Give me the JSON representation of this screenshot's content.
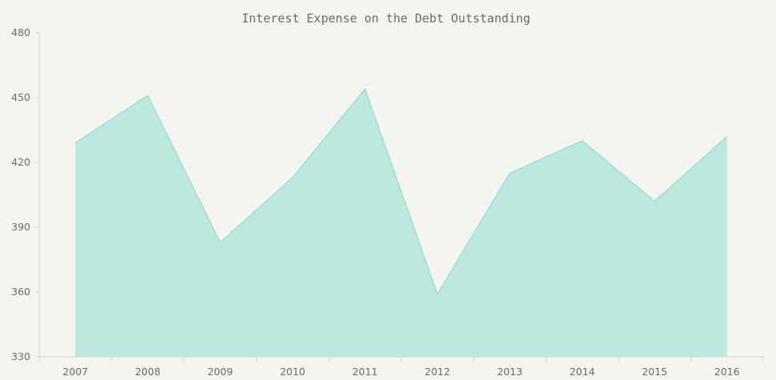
{
  "chart_data": {
    "type": "area",
    "title": "Interest Expense on the Debt Outstanding",
    "xlabel": "",
    "ylabel": "",
    "categories": [
      "2007",
      "2008",
      "2009",
      "2010",
      "2011",
      "2012",
      "2013",
      "2014",
      "2015",
      "2016"
    ],
    "series": [
      {
        "name": "Interest Expense",
        "values": [
          429,
          451,
          383,
          413,
          454,
          359,
          415,
          430,
          402,
          432
        ]
      }
    ],
    "ylim": [
      330,
      480
    ],
    "yticks": [
      330,
      360,
      390,
      420,
      450,
      480
    ],
    "grid": false,
    "legend": "none",
    "colors": {
      "fill": "#bce8dd",
      "stroke": "#9fe0cf",
      "axis": "#d6d4d0",
      "text": "#6b6b6b"
    }
  }
}
